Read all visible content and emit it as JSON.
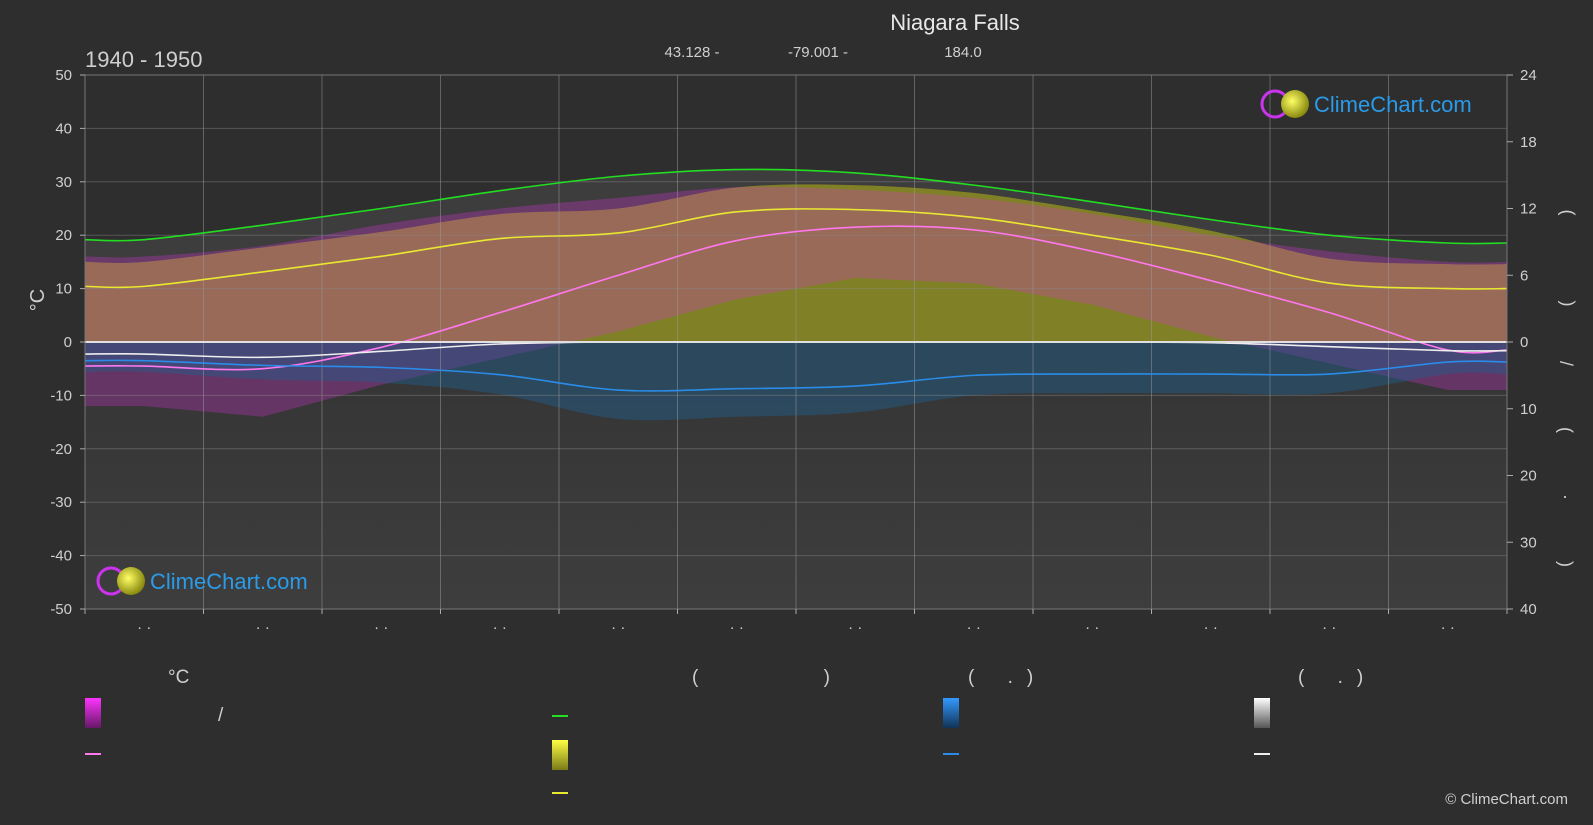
{
  "header": {
    "title": "Niagara Falls",
    "period": "1940 - 1950",
    "latitude": "43.128 -",
    "longitude": "-79.001 -",
    "elevation": "184.0"
  },
  "brand": {
    "logo_text": "ClimeChart.com",
    "copyright": "© ClimeChart.com"
  },
  "colors": {
    "background": "#2e2e2e",
    "daylight": "#22dd22",
    "sunshine": "#e8e830",
    "temp_mean": "#ff77ee",
    "temp_band": "#dd33dd",
    "precip": "#2a8ce8",
    "snow": "#eeeeee",
    "brand_blue": "#2a9be8"
  },
  "chart_data": {
    "type": "line",
    "left_axis": {
      "label": "°C",
      "ticks": [
        50,
        40,
        30,
        20,
        10,
        0,
        -10,
        -20,
        -30,
        -40,
        -50
      ],
      "range": [
        -50,
        50
      ]
    },
    "right_axis_top": {
      "label": "( )",
      "ticks": [
        24,
        18,
        12,
        6,
        0
      ],
      "range": [
        0,
        24
      ]
    },
    "right_axis_bottom": {
      "label": "/ ( · )",
      "ticks": [
        10,
        20,
        30,
        40
      ],
      "range": [
        0,
        40
      ]
    },
    "x_ticks": [
      "· ·",
      "· ·",
      "· ·",
      "· ·",
      "· ·",
      "· ·",
      "· ·",
      "· ·",
      "· ·",
      "· ·",
      "· ·",
      "· ·"
    ],
    "months": 12,
    "series": [
      {
        "key": "daylight",
        "values": [
          9.2,
          10.5,
          12.0,
          13.6,
          14.9,
          15.5,
          15.2,
          14.1,
          12.6,
          11.0,
          9.6,
          8.9
        ]
      },
      {
        "key": "sunshine",
        "values": [
          5.0,
          6.3,
          7.7,
          9.3,
          9.8,
          11.7,
          11.9,
          11.2,
          9.6,
          7.8,
          5.3,
          4.8
        ]
      },
      {
        "key": "temp_mean",
        "values": [
          -4.5,
          -5.0,
          -1.0,
          5.5,
          12.5,
          19.0,
          21.5,
          21.0,
          17.0,
          11.5,
          5.5,
          -1.5
        ]
      },
      {
        "key": "temp_band_top",
        "values": [
          16,
          18,
          22,
          25,
          27,
          29,
          28.5,
          27,
          24,
          20,
          17,
          15
        ]
      },
      {
        "key": "temp_band_bottom",
        "values": [
          -12,
          -14,
          -8,
          -3,
          2,
          8,
          12,
          11,
          7,
          1,
          -4,
          -9
        ]
      },
      {
        "key": "precip",
        "values": [
          2.8,
          3.5,
          3.8,
          4.9,
          7.2,
          7.0,
          6.6,
          5.0,
          4.8,
          4.8,
          4.8,
          3.0
        ]
      },
      {
        "key": "snow",
        "values": [
          1.8,
          2.3,
          1.4,
          0.3,
          0.0,
          0.0,
          0.0,
          0.0,
          0.0,
          0.1,
          0.7,
          1.3
        ]
      }
    ]
  },
  "legend": {
    "col1": {
      "heading": "°C",
      "row1": "/",
      "row2": ""
    },
    "col2": {
      "heading": "( )",
      "row1": "",
      "row2": "",
      "row3": ""
    },
    "col3": {
      "heading": "( .)",
      "row1": "",
      "row2": ""
    },
    "col4": {
      "heading": "( .)",
      "row1": "",
      "row2": ""
    }
  }
}
